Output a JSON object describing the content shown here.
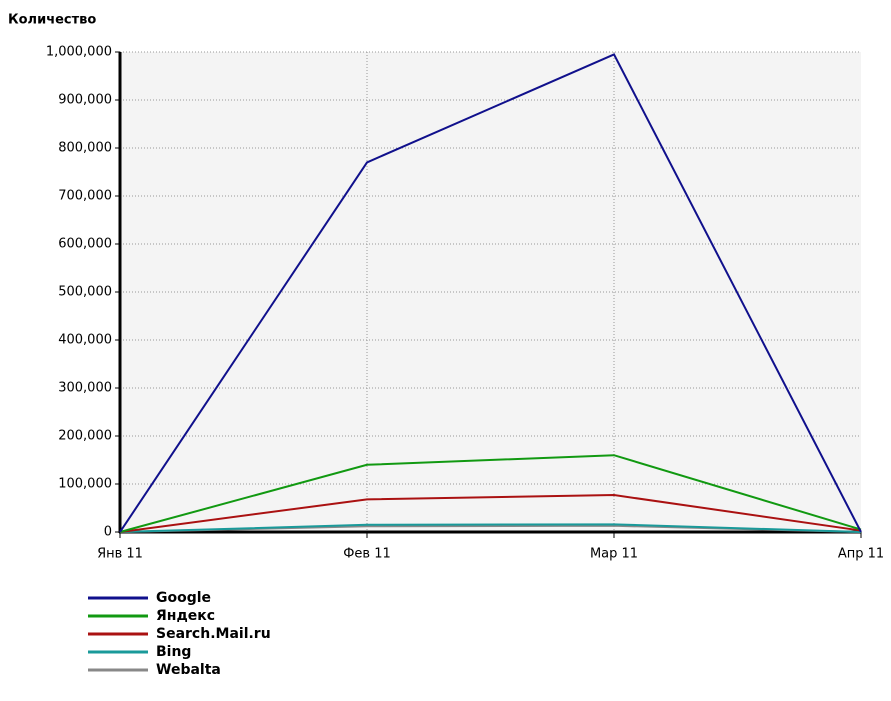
{
  "chart_data": {
    "type": "line",
    "y_axis_label": "Количество",
    "categories": [
      "Янв 11",
      "Фев 11",
      "Мар 11",
      "Апр 11"
    ],
    "series": [
      {
        "name": "Google",
        "color": "#10108c",
        "values": [
          0,
          770000,
          995000,
          0
        ]
      },
      {
        "name": "Яндекс",
        "color": "#119911",
        "values": [
          0,
          140000,
          160000,
          5000
        ]
      },
      {
        "name": "Search.Mail.ru",
        "color": "#aa1111",
        "values": [
          0,
          68000,
          77000,
          3000
        ]
      },
      {
        "name": "Bing",
        "color": "#1a9a9a",
        "values": [
          0,
          15000,
          16000,
          0
        ]
      },
      {
        "name": "Webalta",
        "color": "#888888",
        "values": [
          0,
          12000,
          13000,
          0
        ]
      }
    ],
    "ylim": [
      0,
      1000000
    ],
    "yticks": [
      0,
      {
        "value": 100000,
        "label": "100,000"
      },
      {
        "value": 200000,
        "label": "200,000"
      },
      {
        "value": 300000,
        "label": "300,000"
      },
      {
        "value": 400000,
        "label": "400,000"
      },
      {
        "value": 500000,
        "label": "500,000"
      },
      {
        "value": 600000,
        "label": "600,000"
      },
      {
        "value": 700000,
        "label": "700,000"
      },
      {
        "value": 800000,
        "label": "800,000"
      },
      {
        "value": 900000,
        "label": "900,000"
      },
      {
        "value": 1000000,
        "label": "1,000,000"
      }
    ],
    "grid": true
  }
}
